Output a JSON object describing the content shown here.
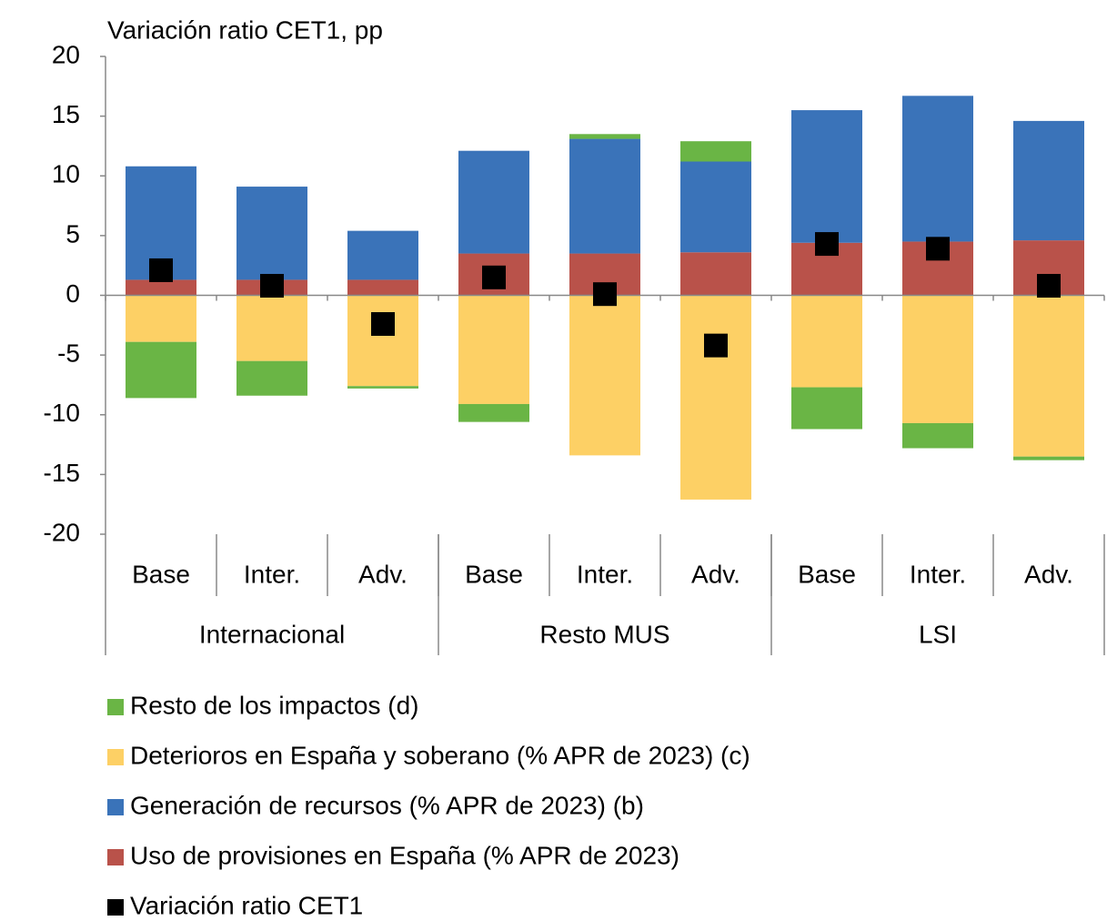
{
  "chart_data": {
    "type": "stacked-bar",
    "y_label": "Variación ratio CET1, pp",
    "categories": [
      "Base",
      "Inter.",
      "Adv.",
      "Base",
      "Inter.",
      "Adv.",
      "Base",
      "Inter.",
      "Adv."
    ],
    "groups": [
      "Internacional",
      "Resto MUS",
      "LSI"
    ],
    "series": [
      {
        "name": "Resto de los impactos (d)",
        "color": "#6ab545",
        "kind": "bar",
        "values": [
          -4.7,
          -2.9,
          -0.2,
          -1.5,
          0.4,
          1.7,
          -3.5,
          -2.1,
          -0.3
        ]
      },
      {
        "name": "Deterioros en España y soberano (% APR de 2023) (c)",
        "color": "#fdd065",
        "kind": "bar",
        "values": [
          -3.9,
          -5.5,
          -7.6,
          -9.1,
          -13.4,
          -17.1,
          -7.7,
          -10.7,
          -13.5
        ]
      },
      {
        "name": "Generación de recursos (% APR de 2023) (b)",
        "color": "#3a73b9",
        "kind": "bar",
        "values": [
          9.5,
          7.8,
          4.1,
          8.6,
          9.6,
          7.6,
          11.1,
          12.2,
          10.0
        ]
      },
      {
        "name": "Uso de provisiones en España (% APR de 2023)",
        "color": "#b9524a",
        "kind": "bar",
        "values": [
          1.3,
          1.3,
          1.3,
          3.5,
          3.5,
          3.6,
          4.4,
          4.5,
          4.6
        ]
      },
      {
        "name": "Variación ratio CET1",
        "color": "#000000",
        "kind": "marker",
        "values": [
          2.1,
          0.8,
          -2.4,
          1.5,
          0.1,
          -4.2,
          4.3,
          3.9,
          0.8
        ]
      }
    ],
    "ylim": [
      -20,
      20
    ],
    "yticks": [
      -20,
      -15,
      -10,
      -5,
      0,
      5,
      10,
      15,
      20
    ]
  }
}
